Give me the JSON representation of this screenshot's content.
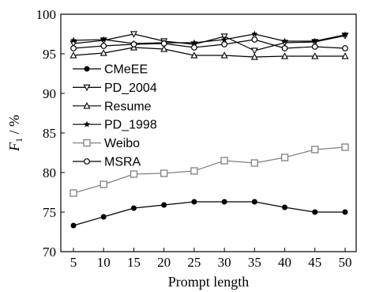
{
  "chart_data": {
    "type": "line",
    "xlabel": "Prompt length",
    "ylabel_main": "F",
    "ylabel_sub": "1",
    "ylabel_rest": " / %",
    "x": [
      5,
      10,
      15,
      20,
      25,
      30,
      35,
      40,
      45,
      50
    ],
    "xlim": [
      5,
      50
    ],
    "ylim": [
      70,
      100
    ],
    "xticks": [
      "5",
      "10",
      "15",
      "20",
      "25",
      "30",
      "35",
      "40",
      "45",
      "50"
    ],
    "yticks": [
      "70",
      "75",
      "80",
      "85",
      "90",
      "95",
      "100"
    ],
    "legend_position": "middle-left",
    "grid": false,
    "series": [
      {
        "name": "CMeEE",
        "marker": "filled-circle",
        "color": "#000000",
        "values": [
          73.3,
          74.4,
          75.5,
          75.9,
          76.3,
          76.3,
          76.3,
          75.6,
          75.0,
          75.0
        ]
      },
      {
        "name": "PD_2004",
        "marker": "down-triangle",
        "color": "#000000",
        "values": [
          96.3,
          96.7,
          97.5,
          96.6,
          96.2,
          97.2,
          95.4,
          96.4,
          96.5,
          97.3
        ]
      },
      {
        "name": "Resume",
        "marker": "up-triangle",
        "color": "#000000",
        "values": [
          94.8,
          95.1,
          95.8,
          95.6,
          94.8,
          94.8,
          94.6,
          94.7,
          94.7,
          94.7
        ]
      },
      {
        "name": "PD_1998",
        "marker": "star",
        "color": "#000000",
        "values": [
          96.7,
          96.8,
          96.3,
          96.4,
          96.4,
          96.8,
          97.5,
          96.6,
          96.6,
          97.4
        ]
      },
      {
        "name": "Weibo",
        "marker": "open-square",
        "color": "#808080",
        "values": [
          77.4,
          78.5,
          79.8,
          79.9,
          80.2,
          81.5,
          81.2,
          81.9,
          82.9,
          83.2
        ]
      },
      {
        "name": "MSRA",
        "marker": "open-circle",
        "color": "#000000",
        "values": [
          95.7,
          96.0,
          96.2,
          96.3,
          95.8,
          96.2,
          96.8,
          95.7,
          95.9,
          95.7
        ]
      }
    ]
  }
}
